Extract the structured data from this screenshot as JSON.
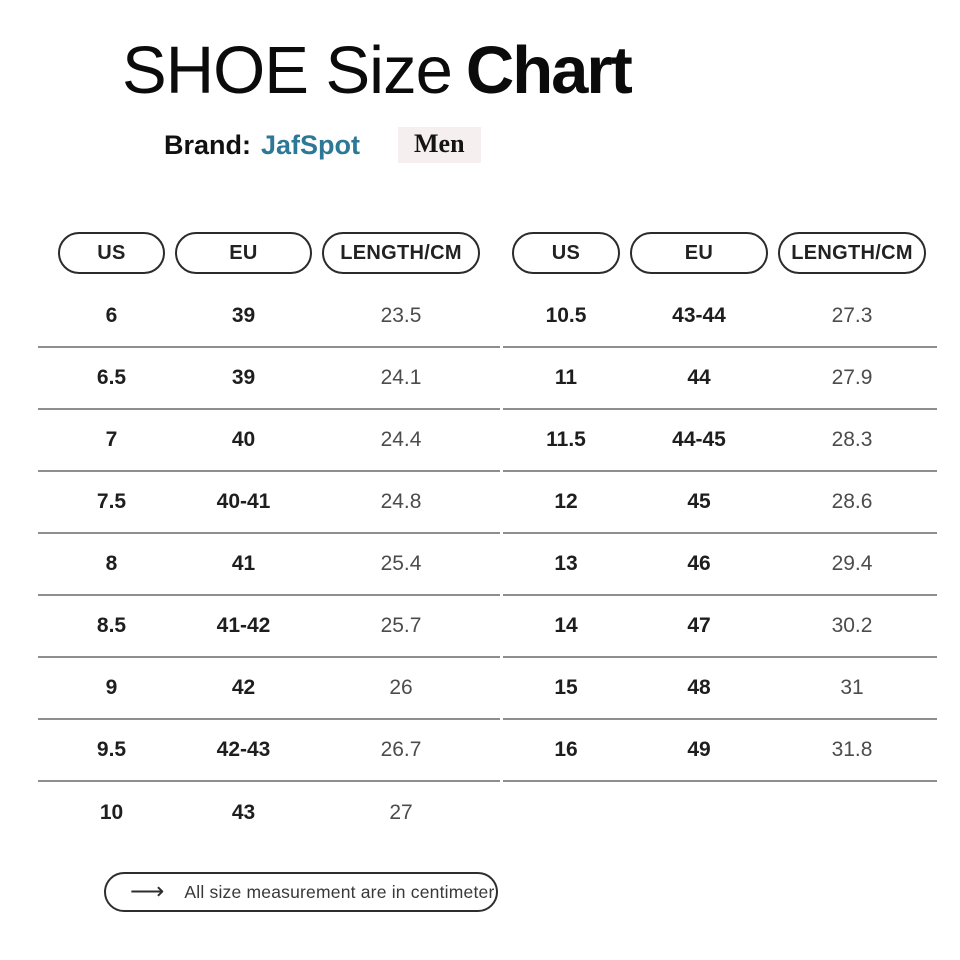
{
  "title": {
    "part_regular": "SHOE Size",
    "part_bold": "Chart"
  },
  "brand": {
    "label": "Brand:",
    "name": "JafSpot",
    "badge": "Men"
  },
  "columns": [
    "US",
    "EU",
    "LENGTH/CM"
  ],
  "tables": [
    {
      "name": "left",
      "rows": [
        [
          "6",
          "39",
          "23.5"
        ],
        [
          "6.5",
          "39",
          "24.1"
        ],
        [
          "7",
          "40",
          "24.4"
        ],
        [
          "7.5",
          "40-41",
          "24.8"
        ],
        [
          "8",
          "41",
          "25.4"
        ],
        [
          "8.5",
          "41-42",
          "25.7"
        ],
        [
          "9",
          "42",
          "26"
        ],
        [
          "9.5",
          "42-43",
          "26.7"
        ],
        [
          "10",
          "43",
          "27"
        ]
      ]
    },
    {
      "name": "right",
      "rows": [
        [
          "10.5",
          "43-44",
          "27.3"
        ],
        [
          "11",
          "44",
          "27.9"
        ],
        [
          "11.5",
          "44-45",
          "28.3"
        ],
        [
          "12",
          "45",
          "28.6"
        ],
        [
          "13",
          "46",
          "29.4"
        ],
        [
          "14",
          "47",
          "30.2"
        ],
        [
          "15",
          "48",
          "31"
        ],
        [
          "16",
          "49",
          "31.8"
        ]
      ]
    }
  ],
  "footnote": {
    "arrow": "⟶",
    "text": "All size measurement are in centimeter"
  },
  "colors": {
    "brand_name": "#2e7897",
    "badge_bg": "#f6eff0",
    "separator": "#8e8e8e",
    "pill_border": "#2b2b2b",
    "text_primary": "#1e1e1e",
    "text_secondary": "#4c4c4c"
  }
}
